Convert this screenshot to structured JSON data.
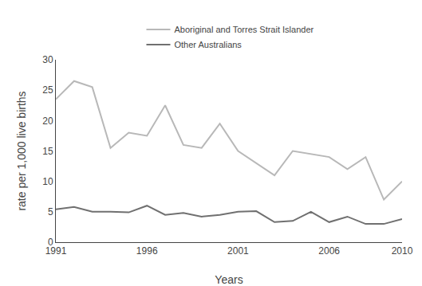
{
  "chart_data": {
    "type": "line",
    "xlabel": "Years",
    "ylabel": "rate per 1,000 live births",
    "x": [
      1991,
      1992,
      1993,
      1994,
      1995,
      1996,
      1997,
      1998,
      1999,
      2000,
      2001,
      2002,
      2003,
      2004,
      2005,
      2006,
      2007,
      2008,
      2009,
      2010
    ],
    "series": [
      {
        "name": "Aboriginal and Torres Strait Islander",
        "color": "#b8b8b8",
        "values": [
          23.5,
          26.5,
          25.5,
          15.5,
          18.0,
          17.5,
          22.5,
          16.0,
          15.5,
          19.5,
          15.0,
          13.0,
          11.0,
          15.0,
          14.5,
          14.0,
          12.0,
          14.0,
          7.0,
          10.0
        ]
      },
      {
        "name": "Other Australians",
        "color": "#707070",
        "values": [
          5.4,
          5.8,
          5.0,
          5.0,
          4.9,
          6.0,
          4.5,
          4.8,
          4.2,
          4.5,
          5.0,
          5.1,
          3.3,
          3.5,
          5.0,
          3.3,
          4.2,
          3.0,
          3.0,
          3.8
        ]
      }
    ],
    "xlim": [
      1991,
      2010
    ],
    "xticks": [
      1991,
      1996,
      2001,
      2006,
      2010
    ],
    "ylim": [
      0,
      30
    ],
    "yticks": [
      0,
      5,
      10,
      15,
      20,
      25,
      30
    ],
    "grid": false,
    "legend": "top"
  }
}
